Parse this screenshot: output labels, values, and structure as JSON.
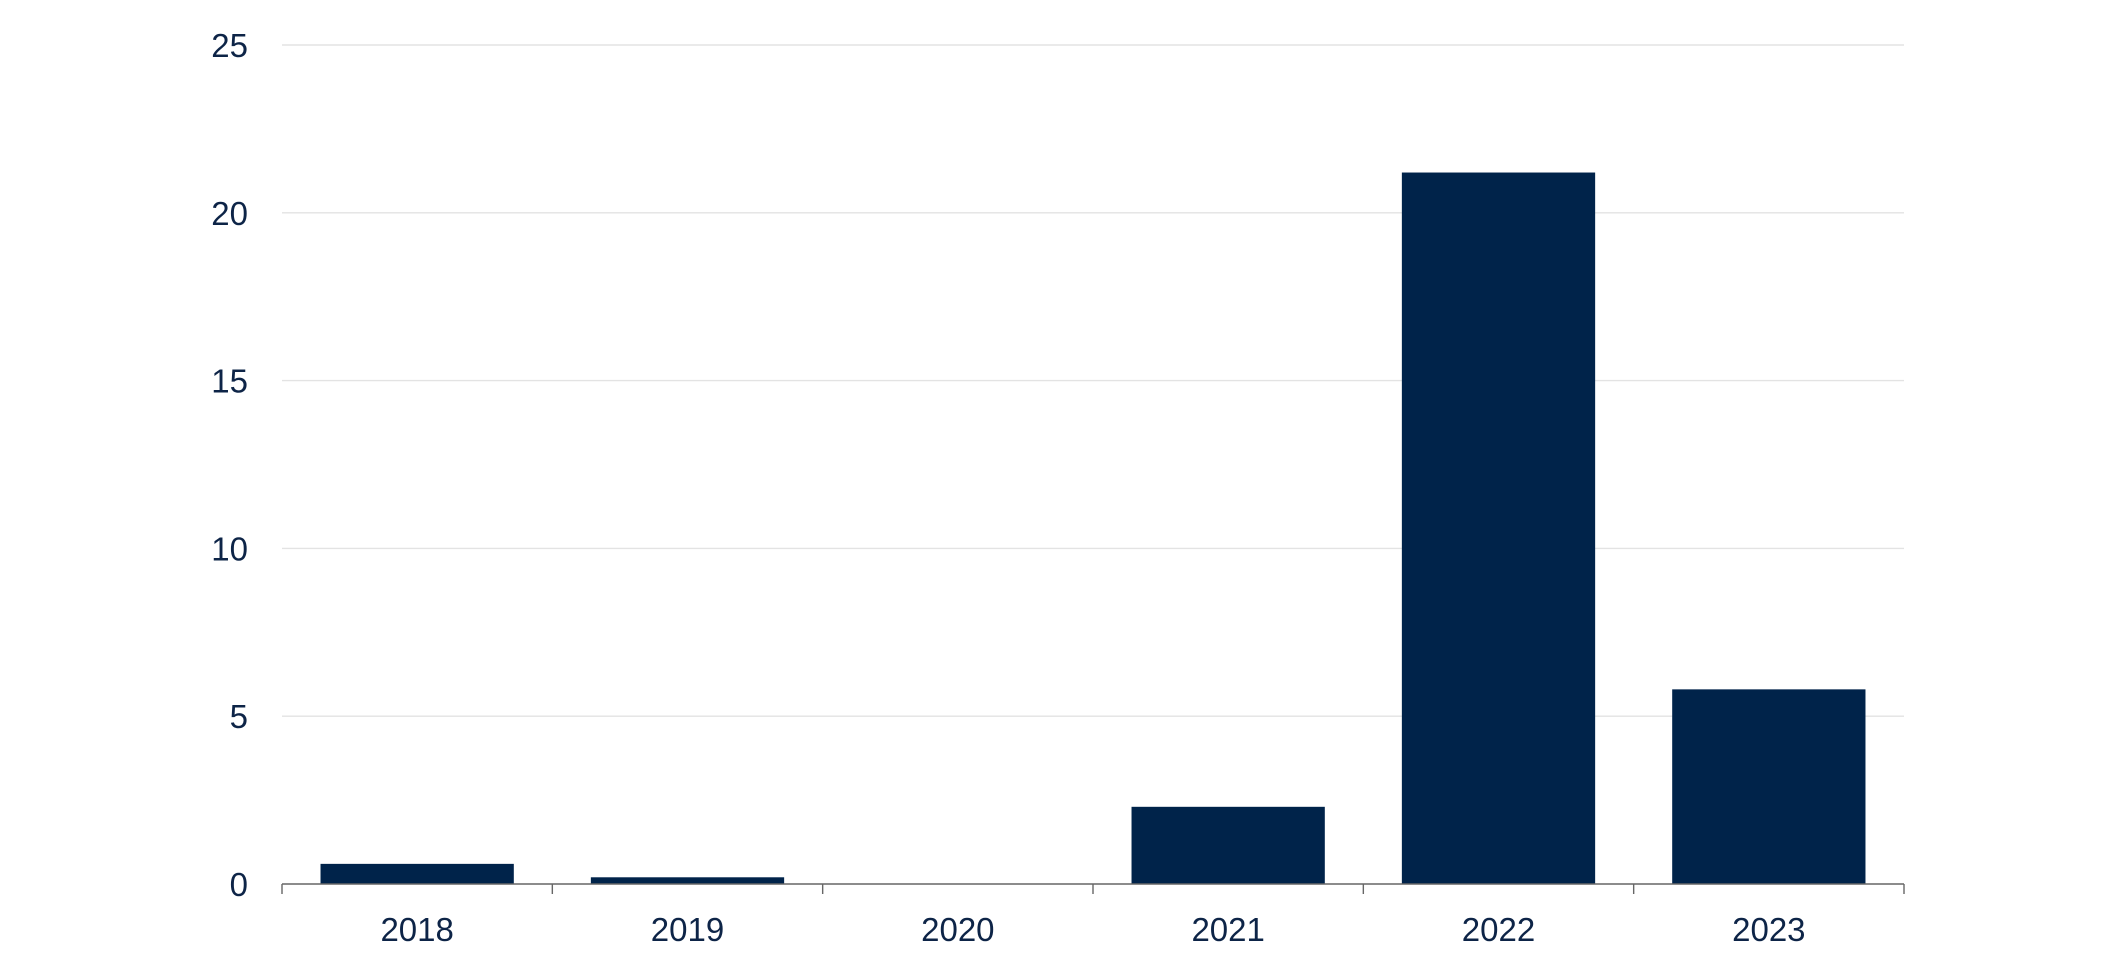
{
  "chart_data": {
    "type": "bar",
    "categories": [
      "2018",
      "2019",
      "2020",
      "2021",
      "2022",
      "2023"
    ],
    "values": [
      0.6,
      0.2,
      0,
      2.3,
      21.2,
      5.8
    ],
    "y_ticks": [
      "0",
      "5",
      "10",
      "15",
      "20",
      "25"
    ],
    "ylim": [
      0,
      25
    ],
    "grid": true,
    "bar_color": "#00234a",
    "grid_color": "#e3e3e3",
    "text_color": "#0d2447"
  }
}
